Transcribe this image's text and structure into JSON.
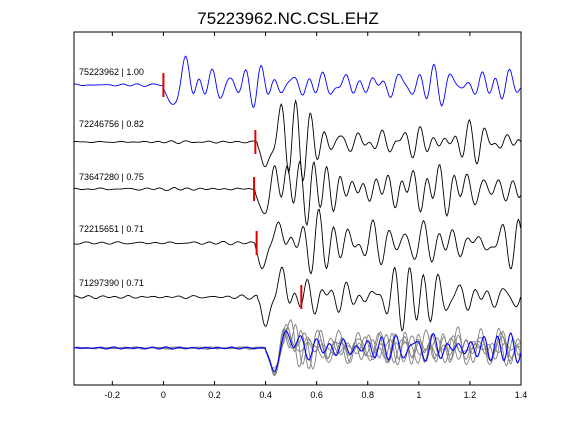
{
  "chart_data": {
    "type": "line",
    "title": "75223962.NC.CSL.EHZ",
    "xlabel": "",
    "ylabel": "",
    "xlim": [
      -0.35,
      1.4
    ],
    "xticks": [
      -0.2,
      0,
      0.2,
      0.4,
      0.6,
      0.8,
      1,
      1.2,
      1.4
    ],
    "xtick_labels": [
      "-0.2",
      "0",
      "0.2",
      "0.4",
      "0.6",
      "0.8",
      "1",
      "1.2",
      "1.4"
    ],
    "grid": false,
    "traces": [
      {
        "label": "75223962 | 1.00",
        "id": "75223962",
        "cc": 1.0,
        "color": "#0000ff",
        "pick_time": 0.0,
        "onset": 0.0,
        "amp": 0.8
      },
      {
        "label": "72246756 | 0.82",
        "id": "72246756",
        "cc": 0.82,
        "color": "#000000",
        "pick_time": 0.36,
        "onset": 0.37,
        "amp": 1.0
      },
      {
        "label": "73647280 | 0.75",
        "id": "73647280",
        "cc": 0.75,
        "color": "#000000",
        "pick_time": 0.355,
        "onset": 0.36,
        "amp": 1.0
      },
      {
        "label": "72215651 | 0.71",
        "id": "72215651",
        "cc": 0.71,
        "color": "#000000",
        "pick_time": 0.365,
        "onset": 0.36,
        "amp": 1.0
      },
      {
        "label": "71297390 | 0.71",
        "id": "71297390",
        "cc": 0.71,
        "color": "#000000",
        "pick_time": 0.54,
        "onset": 0.37,
        "amp": 1.0
      }
    ],
    "stack": {
      "color_main": "#0000ff",
      "color_others": "#808080",
      "onset": 0.4
    },
    "pick_color": "#dd0000"
  }
}
